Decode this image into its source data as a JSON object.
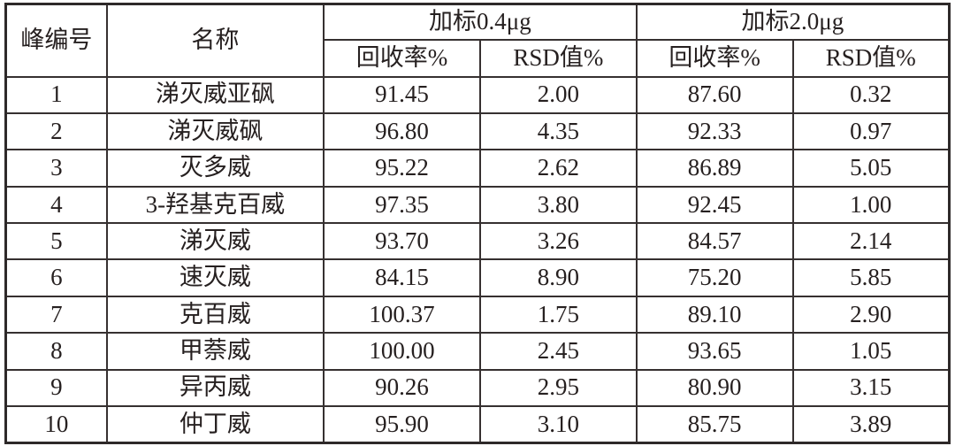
{
  "table": {
    "headers": {
      "peak_no": "峰编号",
      "name": "名称",
      "spike_04": "加标0.4μg",
      "spike_20": "加标2.0μg",
      "recovery": "回收率%",
      "rsd": "RSD值%"
    },
    "rows": [
      {
        "no": "1",
        "name": "涕灭威亚砜",
        "r04": "91.45",
        "rsd04": "2.00",
        "r20": "87.60",
        "rsd20": "0.32"
      },
      {
        "no": "2",
        "name": "涕灭威砜",
        "r04": "96.80",
        "rsd04": "4.35",
        "r20": "92.33",
        "rsd20": "0.97"
      },
      {
        "no": "3",
        "name": "灭多威",
        "r04": "95.22",
        "rsd04": "2.62",
        "r20": "86.89",
        "rsd20": "5.05"
      },
      {
        "no": "4",
        "name": "3-羟基克百威",
        "r04": "97.35",
        "rsd04": "3.80",
        "r20": "92.45",
        "rsd20": "1.00"
      },
      {
        "no": "5",
        "name": "涕灭威",
        "r04": "93.70",
        "rsd04": "3.26",
        "r20": "84.57",
        "rsd20": "2.14"
      },
      {
        "no": "6",
        "name": "速灭威",
        "r04": "84.15",
        "rsd04": "8.90",
        "r20": "75.20",
        "rsd20": "5.85"
      },
      {
        "no": "7",
        "name": "克百威",
        "r04": "100.37",
        "rsd04": "1.75",
        "r20": "89.10",
        "rsd20": "2.90"
      },
      {
        "no": "8",
        "name": "甲萘威",
        "r04": "100.00",
        "rsd04": "2.45",
        "r20": "93.65",
        "rsd20": "1.05"
      },
      {
        "no": "9",
        "name": "异丙威",
        "r04": "90.26",
        "rsd04": "2.95",
        "r20": "80.90",
        "rsd20": "3.15"
      },
      {
        "no": "10",
        "name": "仲丁威",
        "r04": "95.90",
        "rsd04": "3.10",
        "r20": "85.75",
        "rsd20": "3.89"
      }
    ]
  },
  "colors": {
    "background": "#ffffff",
    "border": "#363030",
    "text": "#262020"
  }
}
